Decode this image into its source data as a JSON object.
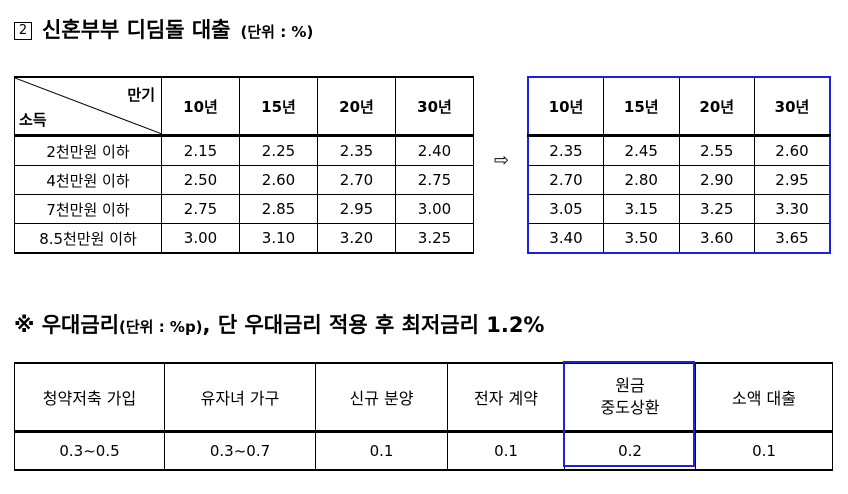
{
  "section1": {
    "number": "2",
    "title": "신혼부부 디딤돌 대출",
    "unit": "(단위 : %)"
  },
  "table1": {
    "corner_top": "만기",
    "corner_bottom": "소득",
    "columns": [
      "10년",
      "15년",
      "20년",
      "30년"
    ],
    "rows": [
      {
        "label": "2천만원 이하",
        "values": [
          "2.15",
          "2.25",
          "2.35",
          "2.40"
        ]
      },
      {
        "label": "4천만원 이하",
        "values": [
          "2.50",
          "2.60",
          "2.70",
          "2.75"
        ]
      },
      {
        "label": "7천만원 이하",
        "values": [
          "2.75",
          "2.85",
          "2.95",
          "3.00"
        ]
      },
      {
        "label": "8.5천만원 이하",
        "values": [
          "3.00",
          "3.10",
          "3.20",
          "3.25"
        ]
      }
    ]
  },
  "arrow": "⇨",
  "table2": {
    "columns": [
      "10년",
      "15년",
      "20년",
      "30년"
    ],
    "rows": [
      [
        "2.35",
        "2.45",
        "2.55",
        "2.60"
      ],
      [
        "2.70",
        "2.80",
        "2.90",
        "2.95"
      ],
      [
        "3.05",
        "3.15",
        "3.25",
        "3.30"
      ],
      [
        "3.40",
        "3.50",
        "3.60",
        "3.65"
      ]
    ],
    "highlight_color": "#1f1fdc"
  },
  "section2": {
    "mark": "※",
    "title_a": "우대금리",
    "unit": "(단위 : %p)",
    "title_b": ", 단 우대금리 적용 후 최저금리 1.2%"
  },
  "table3": {
    "headers": [
      "청약저축 가입",
      "유자녀 가구",
      "신규 분양",
      "전자 계약",
      "원금\n중도상환",
      "소액 대출"
    ],
    "values": [
      "0.3~0.5",
      "0.3~0.7",
      "0.1",
      "0.1",
      "0.2",
      "0.1"
    ]
  }
}
